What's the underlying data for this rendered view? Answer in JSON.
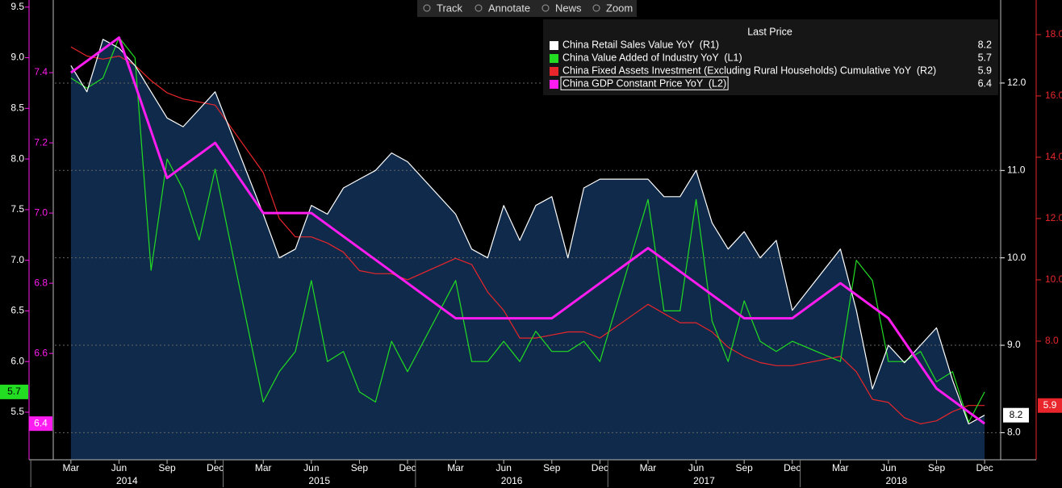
{
  "toolbar": [
    "Track",
    "Annotate",
    "News",
    "Zoom"
  ],
  "chart_data": {
    "type": "line",
    "legend_title": "Last Price",
    "x": [
      "2014-03",
      "2014-04",
      "2014-05",
      "2014-06",
      "2014-07",
      "2014-08",
      "2014-09",
      "2014-10",
      "2014-11",
      "2014-12",
      "2015-03",
      "2015-04",
      "2015-05",
      "2015-06",
      "2015-07",
      "2015-08",
      "2015-09",
      "2015-10",
      "2015-11",
      "2015-12",
      "2016-03",
      "2016-04",
      "2016-05",
      "2016-06",
      "2016-07",
      "2016-08",
      "2016-09",
      "2016-10",
      "2016-11",
      "2016-12",
      "2017-03",
      "2017-04",
      "2017-05",
      "2017-06",
      "2017-07",
      "2017-08",
      "2017-09",
      "2017-10",
      "2017-11",
      "2017-12",
      "2018-03",
      "2018-04",
      "2018-05",
      "2018-06",
      "2018-07",
      "2018-08",
      "2018-09",
      "2018-10",
      "2018-11",
      "2018-12"
    ],
    "xlim": [
      "2014-02",
      "2019-01"
    ],
    "xticks": [
      {
        "value": "2014-03",
        "label": "Mar"
      },
      {
        "value": "2014-06",
        "label": "Jun"
      },
      {
        "value": "2014-09",
        "label": "Sep"
      },
      {
        "value": "2014-12",
        "label": "Dec"
      },
      {
        "value": "2015-03",
        "label": "Mar"
      },
      {
        "value": "2015-06",
        "label": "Jun"
      },
      {
        "value": "2015-09",
        "label": "Sep"
      },
      {
        "value": "2015-12",
        "label": "Dec"
      },
      {
        "value": "2016-03",
        "label": "Mar"
      },
      {
        "value": "2016-06",
        "label": "Jun"
      },
      {
        "value": "2016-09",
        "label": "Sep"
      },
      {
        "value": "2016-12",
        "label": "Dec"
      },
      {
        "value": "2017-03",
        "label": "Mar"
      },
      {
        "value": "2017-06",
        "label": "Jun"
      },
      {
        "value": "2017-09",
        "label": "Sep"
      },
      {
        "value": "2017-12",
        "label": "Dec"
      },
      {
        "value": "2018-03",
        "label": "Mar"
      },
      {
        "value": "2018-06",
        "label": "Jun"
      },
      {
        "value": "2018-09",
        "label": "Sep"
      },
      {
        "value": "2018-12",
        "label": "Dec"
      }
    ],
    "years": [
      2014,
      2015,
      2016,
      2017,
      2018
    ],
    "ylim": [
      5.03,
      9.57
    ],
    "yticks": [
      {
        "value": 5.5,
        "label": "5.5"
      },
      {
        "value": 6,
        "label": "6.0"
      },
      {
        "value": 6.5,
        "label": "6.5"
      },
      {
        "value": 7,
        "label": "7.0"
      },
      {
        "value": 7.5,
        "label": "7.5"
      },
      {
        "value": 8,
        "label": "8.0"
      },
      {
        "value": 8.5,
        "label": "8.5"
      },
      {
        "value": 9,
        "label": "9.0"
      },
      {
        "value": 9.5,
        "label": "9.5"
      }
    ],
    "y2lim": [
      7.69,
      12.95
    ],
    "y2ticks": [
      {
        "value": 8,
        "label": "8.0"
      },
      {
        "value": 9,
        "label": "9.0"
      },
      {
        "value": 10,
        "label": "10.0"
      },
      {
        "value": 11,
        "label": "11.0"
      },
      {
        "value": 12,
        "label": "12.0"
      }
    ],
    "y3lim": [
      6.297,
      7.607
    ],
    "y3ticks": [
      6.6,
      6.8,
      {
        "value": 7,
        "label": "7.0"
      },
      7.2,
      7.4
    ],
    "y4lim": [
      4.13,
      19.13
    ],
    "y4ticks": [
      {
        "value": 8,
        "label": "8.0"
      },
      {
        "value": 10,
        "label": "10.0"
      },
      {
        "value": 12,
        "label": "12.0"
      },
      {
        "value": 14,
        "label": "14.0"
      },
      {
        "value": 16,
        "label": "16.0"
      },
      {
        "value": 18,
        "label": "18.0"
      }
    ],
    "grid": true,
    "series": [
      {
        "name": "China Retail Sales Value YoY  (R1)",
        "color": "#ffffff",
        "axis": "y2",
        "fill": "#0f2a4a",
        "values": [
          12.2,
          11.9,
          12.5,
          12.4,
          12.2,
          11.9,
          11.6,
          11.5,
          11.7,
          11.9,
          10.5,
          10.0,
          10.1,
          10.6,
          10.5,
          10.8,
          10.9,
          11.0,
          11.2,
          11.1,
          10.5,
          10.1,
          10.0,
          10.6,
          10.2,
          10.6,
          10.7,
          10.0,
          10.8,
          10.9,
          10.9,
          10.7,
          10.7,
          11.0,
          10.4,
          10.1,
          10.3,
          10.0,
          10.2,
          9.4,
          10.1,
          9.4,
          8.5,
          9.0,
          8.8,
          9.0,
          9.2,
          8.6,
          8.1,
          8.2
        ]
      },
      {
        "name": "China Value Added of Industry YoY  (L1)",
        "color": "#22dd22",
        "axis": "y",
        "values": [
          8.8,
          8.7,
          8.8,
          9.2,
          9.0,
          6.9,
          8.0,
          7.7,
          7.2,
          7.9,
          5.6,
          5.9,
          6.1,
          6.8,
          6.0,
          6.1,
          5.7,
          5.6,
          6.2,
          5.9,
          6.8,
          6.0,
          6.0,
          6.2,
          6.0,
          6.3,
          6.1,
          6.1,
          6.2,
          6.0,
          7.6,
          6.5,
          6.5,
          7.6,
          6.4,
          6.0,
          6.6,
          6.2,
          6.1,
          6.2,
          6.0,
          7.0,
          6.8,
          6.0,
          6.0,
          6.1,
          5.8,
          5.9,
          5.4,
          5.7
        ]
      },
      {
        "name": "China Fixed Assets Investment (Excluding Rural Households) Cumulative YoY  (R2)",
        "color": "#e8262b",
        "axis": "y4",
        "values": [
          17.6,
          17.3,
          17.2,
          17.3,
          17.0,
          16.5,
          16.1,
          15.9,
          15.8,
          15.7,
          13.5,
          12.0,
          11.4,
          11.4,
          11.2,
          10.9,
          10.3,
          10.2,
          10.2,
          10.0,
          10.7,
          10.5,
          9.6,
          9.0,
          8.1,
          8.1,
          8.2,
          8.3,
          8.3,
          8.1,
          9.2,
          8.9,
          8.6,
          8.6,
          8.3,
          7.8,
          7.5,
          7.3,
          7.2,
          7.2,
          7.5,
          7.0,
          6.1,
          6.0,
          5.5,
          5.3,
          5.4,
          5.7,
          5.9,
          5.9
        ]
      },
      {
        "name": "China GDP Constant Price YoY  (L2)",
        "color": "#ff1cf0",
        "axis": "y3",
        "x": [
          "2014-03",
          "2014-06",
          "2014-09",
          "2014-12",
          "2015-03",
          "2015-06",
          "2015-09",
          "2015-12",
          "2016-03",
          "2016-06",
          "2016-09",
          "2016-12",
          "2017-03",
          "2017-06",
          "2017-09",
          "2017-12",
          "2018-03",
          "2018-06",
          "2018-09",
          "2018-12"
        ],
        "values": [
          7.4,
          7.5,
          7.1,
          7.2,
          7.0,
          7.0,
          6.9,
          6.8,
          6.7,
          6.7,
          6.7,
          6.8,
          6.9,
          6.8,
          6.7,
          6.7,
          6.8,
          6.7,
          6.5,
          6.4
        ]
      }
    ]
  }
}
